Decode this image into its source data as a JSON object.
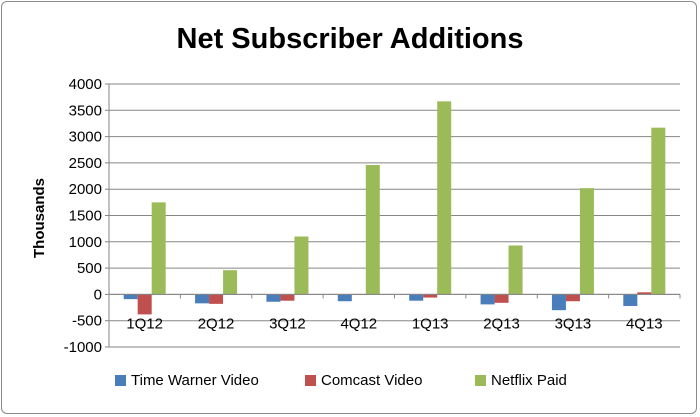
{
  "chart_data": {
    "type": "bar",
    "title": "Net Subscriber Additions",
    "xlabel": "",
    "ylabel": "Thousands",
    "ylim": [
      -1000,
      4000
    ],
    "yticks": [
      -1000,
      -500,
      0,
      500,
      1000,
      1500,
      2000,
      2500,
      3000,
      3500,
      4000
    ],
    "grid": true,
    "legend_position": "bottom",
    "categories": [
      "1Q12",
      "2Q12",
      "3Q12",
      "4Q12",
      "1Q13",
      "2Q13",
      "3Q13",
      "4Q13"
    ],
    "series": [
      {
        "name": "Time Warner Video",
        "color": "#4a7ebb",
        "values": [
          -90,
          -170,
          -140,
          -130,
          -120,
          -190,
          -300,
          -220
        ]
      },
      {
        "name": "Comcast Video",
        "color": "#c0504d",
        "values": [
          -380,
          -180,
          -120,
          0,
          -60,
          -160,
          -130,
          40
        ]
      },
      {
        "name": "Netflix Paid",
        "color": "#9bbb59",
        "values": [
          1750,
          460,
          1100,
          2460,
          3670,
          930,
          2020,
          3170
        ]
      }
    ]
  }
}
